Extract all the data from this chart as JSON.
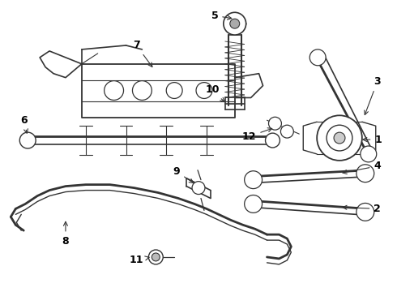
{
  "bg_color": "#ffffff",
  "line_color": "#333333",
  "figsize": [
    4.9,
    3.6
  ],
  "dpi": 100
}
